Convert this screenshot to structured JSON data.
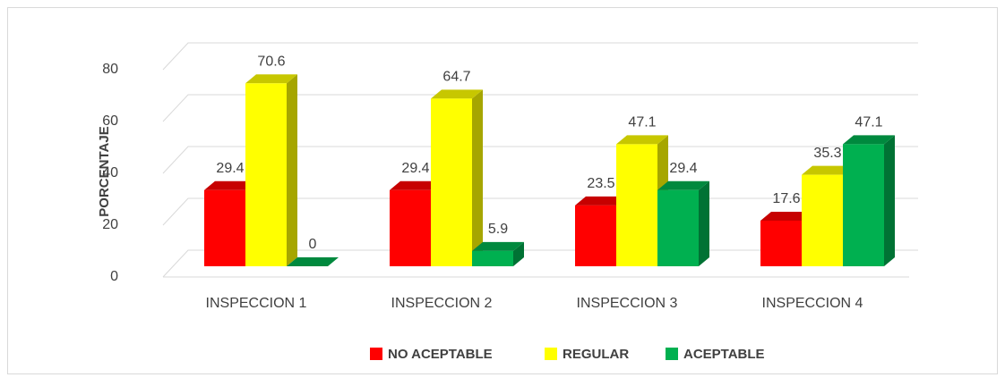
{
  "chart_data": {
    "type": "bar3d",
    "y_label": "PORCENTAJE",
    "categories": [
      "INSPECCION 1",
      "INSPECCION 2",
      "INSPECCION 3",
      "INSPECCION 4"
    ],
    "series": [
      {
        "name": "NO ACEPTABLE",
        "color": "#ff0000",
        "values": [
          29.4,
          29.4,
          23.5,
          17.6
        ]
      },
      {
        "name": "REGULAR",
        "color": "#ffff00",
        "values": [
          70.6,
          64.7,
          47.1,
          35.3
        ]
      },
      {
        "name": "ACEPTABLE",
        "color": "#00b050",
        "values": [
          0,
          5.9,
          29.4,
          47.1
        ]
      }
    ],
    "ylim": [
      0,
      80
    ],
    "yticks": [
      0,
      20,
      40,
      60,
      80
    ],
    "grid": true,
    "legend": "bottom"
  }
}
